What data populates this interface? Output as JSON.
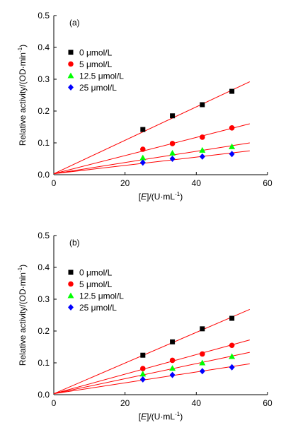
{
  "chart_data": [
    {
      "type": "scatter",
      "panel_label": "(a)",
      "xlabel_prefix": "[",
      "xlabel_var": "E",
      "xlabel_suffix": "]/(U·mL",
      "xlabel_sup": "-1",
      "xlabel_close": ")",
      "ylabel_main": "Relative activity/(OD·min",
      "ylabel_sup": "-1",
      "ylabel_close": ")",
      "xlim": [
        0,
        60
      ],
      "ylim": [
        0,
        0.5
      ],
      "xticks": [
        "0",
        "20",
        "40",
        "60"
      ],
      "yticks": [
        "0.0",
        "0.1",
        "0.2",
        "0.3",
        "0.4",
        "0.5"
      ],
      "legend_position": "upper-left",
      "fit_color": "#ff0000",
      "series": [
        {
          "name": "0 μmol/L",
          "marker": "square",
          "color": "#000000",
          "x": [
            25,
            33.3,
            41.7,
            50
          ],
          "y": [
            0.142,
            0.185,
            0.22,
            0.262
          ],
          "fit": {
            "x": [
              0,
              55
            ],
            "y": [
              0.003,
              0.292
            ]
          }
        },
        {
          "name": "5 μmol/L",
          "marker": "circle",
          "color": "#ff0000",
          "x": [
            25,
            33.3,
            41.7,
            50
          ],
          "y": [
            0.08,
            0.098,
            0.118,
            0.147
          ],
          "fit": {
            "x": [
              0,
              55
            ],
            "y": [
              0.003,
              0.16
            ]
          }
        },
        {
          "name": "12.5 μmol/L",
          "marker": "triangle",
          "color": "#00ff00",
          "x": [
            25,
            33.3,
            41.7,
            50
          ],
          "y": [
            0.053,
            0.068,
            0.077,
            0.088
          ],
          "fit": {
            "x": [
              0,
              55
            ],
            "y": [
              0.003,
              0.1
            ]
          }
        },
        {
          "name": "25 μmol/L",
          "marker": "diamond",
          "color": "#0000ff",
          "x": [
            25,
            33.3,
            41.7,
            50
          ],
          "y": [
            0.038,
            0.05,
            0.057,
            0.065
          ],
          "fit": {
            "x": [
              0,
              55
            ],
            "y": [
              0.003,
              0.075
            ]
          }
        }
      ]
    },
    {
      "type": "scatter",
      "panel_label": "(b)",
      "xlabel_prefix": "[",
      "xlabel_var": "E",
      "xlabel_suffix": "]/(U·mL",
      "xlabel_sup": "-1",
      "xlabel_close": ")",
      "ylabel_main": "Relative activity/(OD·min",
      "ylabel_sup": "-1",
      "ylabel_close": ")",
      "xlim": [
        0,
        60
      ],
      "ylim": [
        0,
        0.5
      ],
      "xticks": [
        "0",
        "20",
        "40",
        "60"
      ],
      "yticks": [
        "0.0",
        "0.1",
        "0.2",
        "0.3",
        "0.4",
        "0.5"
      ],
      "legend_position": "upper-left",
      "fit_color": "#ff0000",
      "series": [
        {
          "name": "0 μmol/L",
          "marker": "square",
          "color": "#000000",
          "x": [
            25,
            33.3,
            41.7,
            50
          ],
          "y": [
            0.124,
            0.166,
            0.207,
            0.24
          ],
          "fit": {
            "x": [
              0,
              55
            ],
            "y": [
              0.003,
              0.268
            ]
          }
        },
        {
          "name": "5 μmol/L",
          "marker": "circle",
          "color": "#ff0000",
          "x": [
            25,
            33.3,
            41.7,
            50
          ],
          "y": [
            0.082,
            0.108,
            0.128,
            0.155
          ],
          "fit": {
            "x": [
              0,
              55
            ],
            "y": [
              0.003,
              0.172
            ]
          }
        },
        {
          "name": "12.5 μmol/L",
          "marker": "triangle",
          "color": "#00ff00",
          "x": [
            25,
            33.3,
            41.7,
            50
          ],
          "y": [
            0.065,
            0.083,
            0.1,
            0.12
          ],
          "fit": {
            "x": [
              0,
              55
            ],
            "y": [
              0.003,
              0.133
            ]
          }
        },
        {
          "name": "25 μmol/L",
          "marker": "diamond",
          "color": "#0000ff",
          "x": [
            25,
            33.3,
            41.7,
            50
          ],
          "y": [
            0.048,
            0.062,
            0.074,
            0.086
          ],
          "fit": {
            "x": [
              0,
              55
            ],
            "y": [
              0.003,
              0.097
            ]
          }
        }
      ]
    }
  ]
}
